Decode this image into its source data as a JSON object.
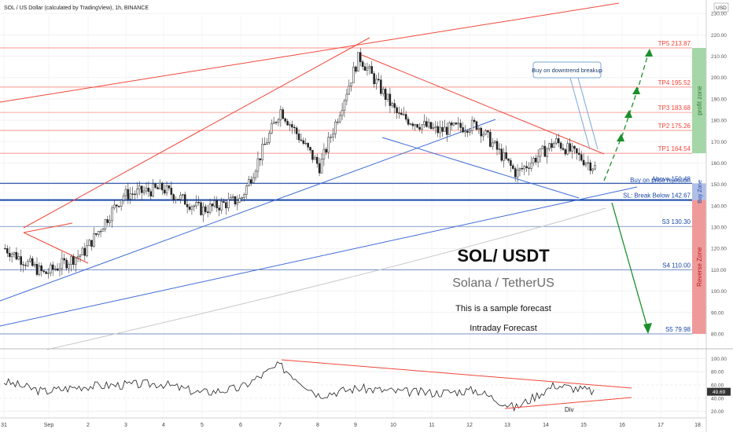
{
  "header": {
    "title": "SOL / US Dollar (calculated by TradingView), 1h, BINANCE"
  },
  "currency_badge": "USD",
  "tick_values": [
    80,
    90,
    100,
    110,
    120,
    130,
    140,
    150,
    160,
    170,
    180,
    190,
    200,
    210,
    220,
    230
  ],
  "x_labels": [
    "31",
    "Sep",
    "2",
    "3",
    "4",
    "5",
    "6",
    "7",
    "8",
    "9",
    "10",
    "11",
    "12",
    "13",
    "14",
    "15",
    "16",
    "17",
    "18"
  ],
  "levels": [
    {
      "label": "TP5 213.87",
      "value": 213.87,
      "color": "#f44336"
    },
    {
      "label": "TP4 195.52",
      "value": 195.52,
      "color": "#f44336"
    },
    {
      "label": "TP3 183.68",
      "value": 183.68,
      "color": "#f44336"
    },
    {
      "label": "TP2 175.26",
      "value": 175.26,
      "color": "#f44336"
    },
    {
      "label": "TP1 164.54",
      "value": 164.54,
      "color": "#f44336"
    },
    {
      "label": "Above 150.48",
      "value": 150.48,
      "color": "#1a47a6"
    },
    {
      "label": "SL: Break Below 142.67",
      "value": 142.67,
      "color": "#1a47a6"
    },
    {
      "label": "S3 130.30",
      "value": 130.3,
      "color": "#1a47a6"
    },
    {
      "label": "S4 110.00",
      "value": 110.0,
      "color": "#1a47a6"
    },
    {
      "label": "S5 79.98",
      "value": 79.98,
      "color": "#1a47a6"
    }
  ],
  "zones": {
    "profit": {
      "label": "profit zone",
      "from": 164.54,
      "to": 213.87,
      "color": "#a5d6a7"
    },
    "buy": {
      "label": "Buy Zone",
      "from": 142.67,
      "to": 150.48,
      "color": "#b0bee6"
    },
    "reverse": {
      "label": "Reverse Zone",
      "from": 79.98,
      "to": 142.67,
      "color": "#ef9a9a"
    }
  },
  "annotations": {
    "downtrend_breakup": "Buy on downtrend breakup",
    "price_rejection": "Buy on price rejection",
    "title": "SOL/ USDT",
    "subtitle": "Solana / TetherUS",
    "sample": "This is a sample forecast",
    "intraday": "Intraday Forecast",
    "divergence": "Div"
  },
  "rsi": {
    "ticks": [
      20,
      40,
      60,
      80,
      100
    ],
    "tick_labels": [
      "20.00",
      "40.00",
      "60.00",
      "80.00",
      "100.00"
    ],
    "current": "49.69"
  },
  "chart_data": {
    "type": "line",
    "xlabel": "",
    "ylabel": "",
    "ylim": [
      75,
      240
    ],
    "x": [
      "Aug 31",
      "Sep 1",
      "Sep 2",
      "Sep 3",
      "Sep 4",
      "Sep 5",
      "Sep 6",
      "Sep 7",
      "Sep 8",
      "Sep 9",
      "Sep 10",
      "Sep 11",
      "Sep 12",
      "Sep 13",
      "Sep 14",
      "Sep 15"
    ],
    "series": [
      {
        "values": [
          120,
          108,
          118,
          145,
          148,
          138,
          143,
          185,
          158,
          210,
          182,
          175,
          178,
          155,
          170,
          158
        ]
      }
    ],
    "rsi_values": [
      65,
      50,
      58,
      60,
      62,
      48,
      55,
      90,
      45,
      55,
      50,
      48,
      52,
      25,
      60,
      50
    ]
  }
}
